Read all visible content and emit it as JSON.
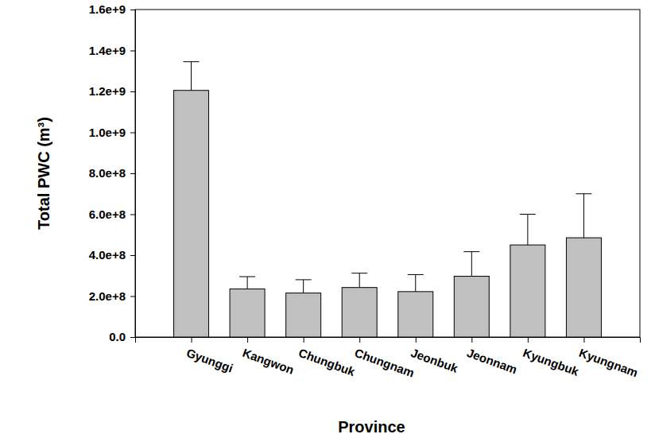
{
  "chart_data": {
    "type": "bar",
    "x_label": "Province",
    "y_label": "Total PWC (m³)",
    "categories": [
      "Gyunggi",
      "Kangwon",
      "Chungbuk",
      "Chungnam",
      "Jeonbuk",
      "Jeonnam",
      "Kyungbuk",
      "Kyungnam"
    ],
    "values": [
      1205000000,
      235000000,
      215000000,
      242000000,
      222000000,
      297000000,
      450000000,
      485000000
    ],
    "errors": [
      140000000,
      60000000,
      65000000,
      70000000,
      83000000,
      120000000,
      150000000,
      215000000
    ],
    "color": "#c0c0c0",
    "ylim": [
      0,
      1600000000
    ],
    "yticks": [
      {
        "value": 0,
        "label": "0.0"
      },
      {
        "value": 200000000,
        "label": "2.0e+8"
      },
      {
        "value": 400000000,
        "label": "4.0e+8"
      },
      {
        "value": 600000000,
        "label": "6.0e+8"
      },
      {
        "value": 800000000,
        "label": "8.0e+8"
      },
      {
        "value": 1000000000,
        "label": "1.0e+9"
      },
      {
        "value": 1200000000,
        "label": "1.2e+9"
      },
      {
        "value": 1400000000,
        "label": "1.4e+9"
      },
      {
        "value": 1600000000,
        "label": "1.6e+9"
      }
    ],
    "grid": false
  }
}
